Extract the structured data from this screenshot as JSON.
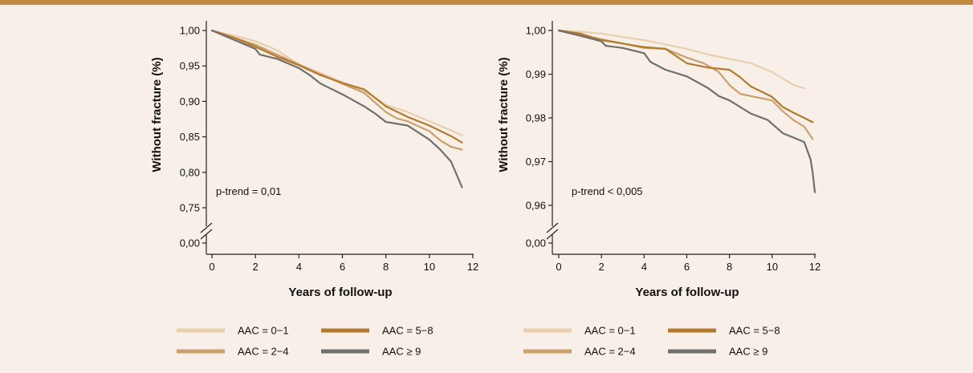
{
  "chart_data": [
    {
      "type": "line",
      "title": "",
      "xlabel": "Years of follow-up",
      "ylabel": "Without fracture (%)",
      "xlim": [
        0,
        12
      ],
      "ylim": [
        0.75,
        1.0
      ],
      "xticks": [
        "0",
        "2",
        "4",
        "6",
        "8",
        "10",
        "12"
      ],
      "yticks": [
        "1,00",
        "0,95",
        "0,90",
        "0,85",
        "0,80",
        "0,75"
      ],
      "ybreak_label": "0,00",
      "annotation": "p-trend = 0,01",
      "legend": [
        "AAC = 0−1",
        "AAC = 5−8",
        "AAC = 2−4",
        "AAC ≥ 9"
      ],
      "series": [
        {
          "name": "AAC = 0−1",
          "color": "#e8cfae",
          "points": [
            [
              0,
              1.0
            ],
            [
              1,
              0.993
            ],
            [
              2,
              0.985
            ],
            [
              3,
              0.972
            ],
            [
              4,
              0.952
            ],
            [
              5,
              0.94
            ],
            [
              6,
              0.927
            ],
            [
              7,
              0.915
            ],
            [
              8,
              0.895
            ],
            [
              9,
              0.885
            ],
            [
              10,
              0.872
            ],
            [
              11,
              0.859
            ],
            [
              11.5,
              0.852
            ]
          ]
        },
        {
          "name": "AAC = 2−4",
          "color": "#caa06d",
          "points": [
            [
              0,
              1.0
            ],
            [
              1,
              0.99
            ],
            [
              2,
              0.98
            ],
            [
              3,
              0.966
            ],
            [
              4,
              0.952
            ],
            [
              5,
              0.938
            ],
            [
              6,
              0.925
            ],
            [
              7,
              0.912
            ],
            [
              8,
              0.885
            ],
            [
              8.5,
              0.876
            ],
            [
              9,
              0.872
            ],
            [
              10,
              0.858
            ],
            [
              10.5,
              0.845
            ],
            [
              11,
              0.836
            ],
            [
              11.5,
              0.832
            ]
          ]
        },
        {
          "name": "AAC = 5−8",
          "color": "#b37a2f",
          "points": [
            [
              0,
              1.0
            ],
            [
              1,
              0.99
            ],
            [
              2,
              0.977
            ],
            [
              3,
              0.963
            ],
            [
              4,
              0.951
            ],
            [
              5,
              0.937
            ],
            [
              6,
              0.926
            ],
            [
              7,
              0.917
            ],
            [
              7.3,
              0.91
            ],
            [
              8,
              0.893
            ],
            [
              9,
              0.878
            ],
            [
              10,
              0.866
            ],
            [
              11,
              0.851
            ],
            [
              11.5,
              0.842
            ]
          ]
        },
        {
          "name": "AAC ≥ 9",
          "color": "#6f6f6f",
          "points": [
            [
              0,
              1.0
            ],
            [
              1,
              0.987
            ],
            [
              2,
              0.974
            ],
            [
              2.2,
              0.966
            ],
            [
              3,
              0.96
            ],
            [
              4,
              0.947
            ],
            [
              4.5,
              0.937
            ],
            [
              5,
              0.925
            ],
            [
              6,
              0.91
            ],
            [
              7,
              0.893
            ],
            [
              7.5,
              0.883
            ],
            [
              8,
              0.871
            ],
            [
              9,
              0.866
            ],
            [
              10,
              0.846
            ],
            [
              10.5,
              0.832
            ],
            [
              11,
              0.815
            ],
            [
              11.5,
              0.779
            ]
          ]
        }
      ]
    },
    {
      "type": "line",
      "title": "",
      "xlabel": "Years of follow-up",
      "ylabel": "Without fracture (%)",
      "xlim": [
        0,
        12
      ],
      "ylim": [
        0.96,
        1.0
      ],
      "xticks": [
        "0",
        "2",
        "4",
        "6",
        "8",
        "10",
        "12"
      ],
      "yticks": [
        "1,00",
        "0,99",
        "0,98",
        "0,97",
        "0,96"
      ],
      "ybreak_label": "0,00",
      "annotation": "p-trend < 0,005",
      "legend": [
        "AAC = 0−1",
        "AAC = 5−8",
        "AAC = 2−4",
        "AAC ≥ 9"
      ],
      "series": [
        {
          "name": "AAC = 0−1",
          "color": "#e8cfae",
          "points": [
            [
              0,
              1.0
            ],
            [
              1,
              0.9997
            ],
            [
              2,
              0.9993
            ],
            [
              3,
              0.9985
            ],
            [
              4,
              0.9978
            ],
            [
              5,
              0.9968
            ],
            [
              6,
              0.9958
            ],
            [
              7,
              0.9945
            ],
            [
              8,
              0.9935
            ],
            [
              9,
              0.9925
            ],
            [
              10,
              0.9905
            ],
            [
              11,
              0.9875
            ],
            [
              11.5,
              0.9868
            ]
          ]
        },
        {
          "name": "AAC = 2−4",
          "color": "#caa06d",
          "points": [
            [
              0,
              1.0
            ],
            [
              1,
              0.999
            ],
            [
              2,
              0.998
            ],
            [
              3,
              0.997
            ],
            [
              4,
              0.996
            ],
            [
              5,
              0.9958
            ],
            [
              6,
              0.9938
            ],
            [
              6.8,
              0.9925
            ],
            [
              7.5,
              0.9905
            ],
            [
              8,
              0.9875
            ],
            [
              8.5,
              0.9855
            ],
            [
              9,
              0.985
            ],
            [
              10,
              0.984
            ],
            [
              10.5,
              0.9815
            ],
            [
              11,
              0.9795
            ],
            [
              11.5,
              0.978
            ],
            [
              11.9,
              0.9752
            ]
          ]
        },
        {
          "name": "AAC = 5−8",
          "color": "#b37a2f",
          "points": [
            [
              0,
              1.0
            ],
            [
              1,
              0.9993
            ],
            [
              2,
              0.9978
            ],
            [
              3,
              0.997
            ],
            [
              4,
              0.9962
            ],
            [
              5,
              0.9958
            ],
            [
              6,
              0.9925
            ],
            [
              7,
              0.9915
            ],
            [
              8,
              0.991
            ],
            [
              8.5,
              0.9893
            ],
            [
              9,
              0.9872
            ],
            [
              10,
              0.9848
            ],
            [
              10.5,
              0.9825
            ],
            [
              11,
              0.9812
            ],
            [
              11.5,
              0.98
            ],
            [
              11.9,
              0.979
            ]
          ]
        },
        {
          "name": "AAC ≥ 9",
          "color": "#6f6f6f",
          "points": [
            [
              0,
              1.0
            ],
            [
              1,
              0.9988
            ],
            [
              2,
              0.9975
            ],
            [
              2.2,
              0.9965
            ],
            [
              3,
              0.996
            ],
            [
              4,
              0.9948
            ],
            [
              4.3,
              0.9928
            ],
            [
              5,
              0.991
            ],
            [
              6,
              0.9895
            ],
            [
              7,
              0.9868
            ],
            [
              7.5,
              0.985
            ],
            [
              8,
              0.984
            ],
            [
              8.5,
              0.9825
            ],
            [
              9,
              0.981
            ],
            [
              9.8,
              0.9795
            ],
            [
              10.5,
              0.9765
            ],
            [
              11,
              0.9755
            ],
            [
              11.5,
              0.9745
            ],
            [
              11.8,
              0.9705
            ],
            [
              11.9,
              0.9675
            ],
            [
              12,
              0.963
            ]
          ]
        }
      ]
    }
  ]
}
